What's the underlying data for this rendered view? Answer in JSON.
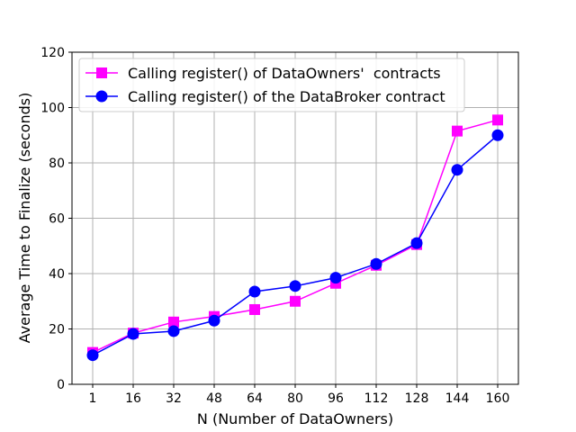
{
  "chart_data": {
    "type": "line",
    "xlabel": "N (Number of DataOwners)",
    "ylabel": "Average Time to Finalize (seconds)",
    "categories": [
      "1",
      "16",
      "32",
      "48",
      "64",
      "80",
      "96",
      "112",
      "128",
      "144",
      "160"
    ],
    "y_ticks": [
      "0",
      "20",
      "40",
      "60",
      "80",
      "100",
      "120"
    ],
    "ylim": [
      0,
      120
    ],
    "grid": true,
    "legend_position": "top-left",
    "series": [
      {
        "name": "Calling register() of DataOwners'  contracts",
        "color": "#ff00ff",
        "marker": "square",
        "values": [
          11.5,
          18.5,
          22.5,
          24.5,
          27,
          30,
          36.5,
          43,
          50.5,
          91.5,
          95.5
        ]
      },
      {
        "name": "Calling register() of the DataBroker contract",
        "color": "#0000ff",
        "marker": "circle",
        "values": [
          10.5,
          18.2,
          19.2,
          23,
          33.5,
          35.5,
          38.5,
          43.5,
          51,
          77.5,
          90
        ]
      }
    ]
  }
}
